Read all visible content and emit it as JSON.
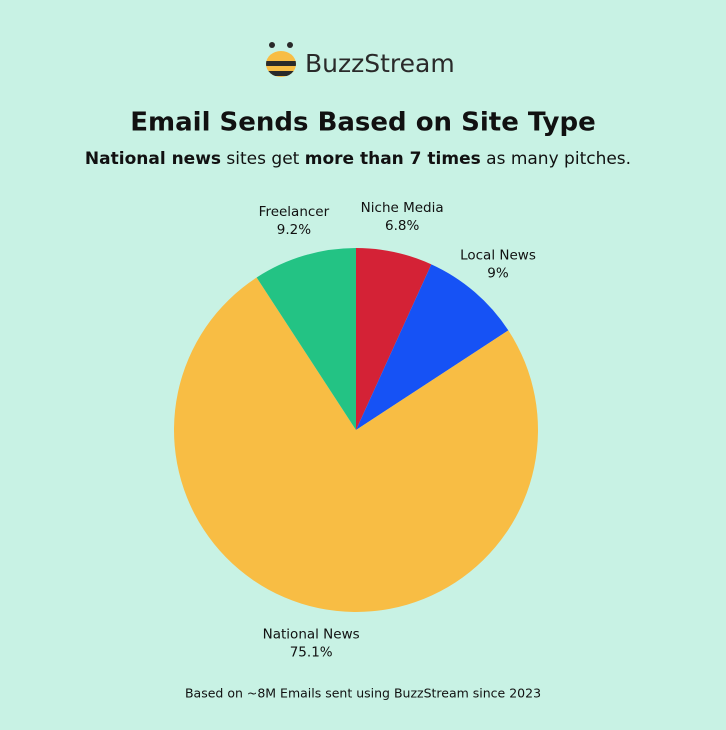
{
  "logo": {
    "text": "BuzzStream"
  },
  "chart_data": {
    "type": "pie",
    "title": "Email Sends Based on Site Type",
    "subtitle": [
      {
        "text": "National news",
        "bold": true
      },
      {
        "text": " sites get ",
        "bold": false
      },
      {
        "text": "more than 7 times",
        "bold": true
      },
      {
        "text": " as many pitches.",
        "bold": false
      }
    ],
    "categories": [
      "Niche Media",
      "Local News",
      "National News",
      "Freelancer"
    ],
    "values": [
      6.8,
      9,
      75.1,
      9.2
    ],
    "value_labels": [
      "6.8%",
      "9%",
      "75.1%",
      "9.2%"
    ],
    "colors": [
      "#d42236",
      "#1652f5",
      "#f8bd44",
      "#23c384"
    ],
    "footnote": "Based on ~8M Emails sent using BuzzStream since 2023"
  }
}
